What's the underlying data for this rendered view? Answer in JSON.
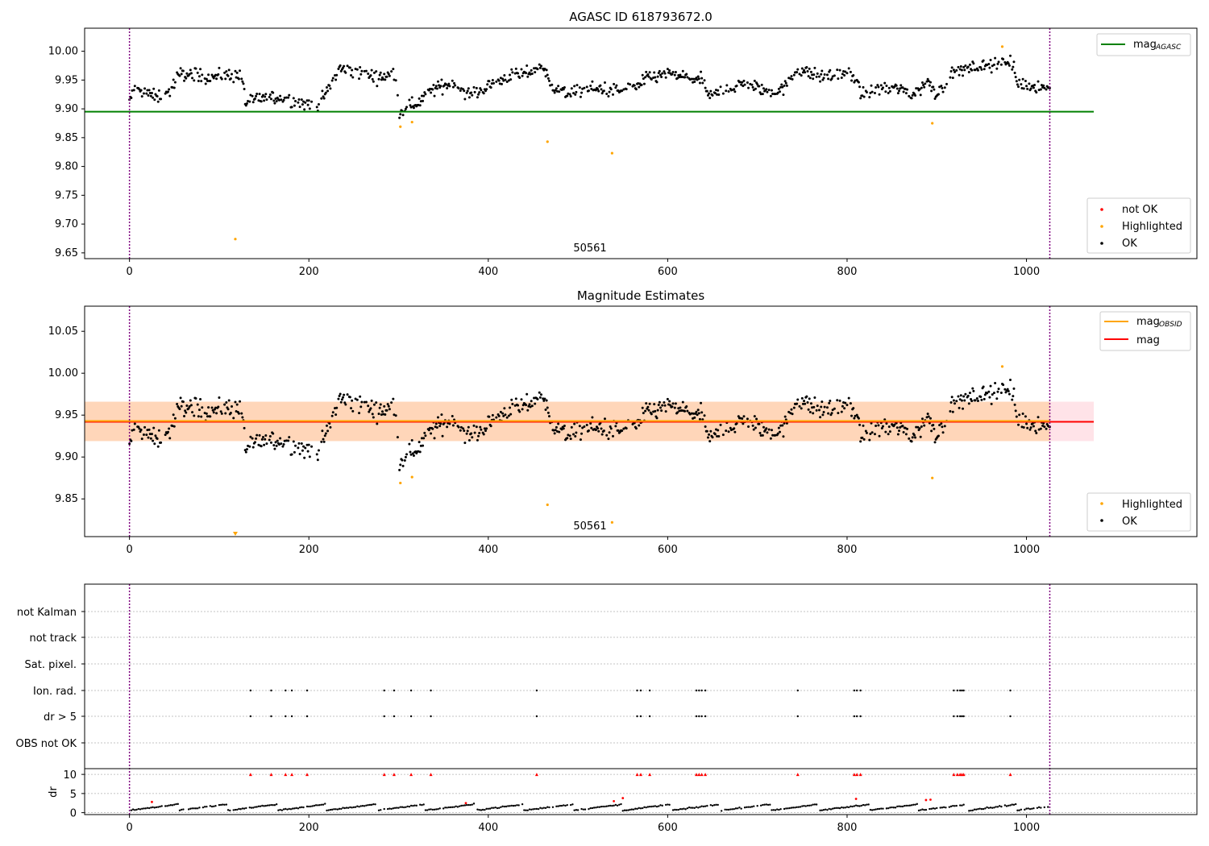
{
  "chart_data": [
    {
      "type": "scatter",
      "title": "AGASC ID 618793672.0",
      "xlim": [
        -50,
        1190
      ],
      "ylim": [
        9.64,
        10.04
      ],
      "xticks": [
        "0",
        "200",
        "400",
        "600",
        "800",
        "1000"
      ],
      "yticks": [
        "9.65",
        "9.70",
        "9.75",
        "9.80",
        "9.85",
        "9.90",
        "9.95",
        "10.00"
      ],
      "annotation": "50561",
      "vlines": [
        0,
        1026
      ],
      "hline": {
        "name": "mag_AGASC",
        "label_main": "mag",
        "label_sub": "AGASC",
        "value": 9.895,
        "color": "#008000",
        "x_end": 1075
      },
      "legend_top": [
        {
          "label_main": "mag",
          "label_sub": "AGASC",
          "color": "#008000",
          "kind": "line"
        }
      ],
      "legend_bottom": [
        {
          "label": "not OK",
          "color": "#ff0000",
          "kind": "dot"
        },
        {
          "label": "Highlighted",
          "color": "#ffa500",
          "kind": "dot"
        },
        {
          "label": "OK",
          "color": "#000000",
          "kind": "dot"
        }
      ],
      "series": [
        {
          "name": "Highlighted",
          "color": "#ffa500",
          "points": [
            [
              118,
              9.674
            ],
            [
              302,
              9.869
            ],
            [
              315,
              9.877
            ],
            [
              466,
              9.843
            ],
            [
              538,
              9.823
            ],
            [
              895,
              9.875
            ],
            [
              973,
              10.008
            ]
          ]
        }
      ],
      "ok_segments": [
        [
          0,
          9.91
        ],
        [
          5,
          9.935
        ],
        [
          15,
          9.93
        ],
        [
          30,
          9.92
        ],
        [
          45,
          9.93
        ],
        [
          55,
          9.96
        ],
        [
          70,
          9.96
        ],
        [
          90,
          9.955
        ],
        [
          110,
          9.96
        ],
        [
          125,
          9.955
        ],
        [
          130,
          9.91
        ],
        [
          150,
          9.92
        ],
        [
          170,
          9.92
        ],
        [
          190,
          9.91
        ],
        [
          210,
          9.905
        ],
        [
          220,
          9.93
        ],
        [
          235,
          9.97
        ],
        [
          260,
          9.96
        ],
        [
          280,
          9.955
        ],
        [
          297,
          9.96
        ],
        [
          300,
          9.895
        ],
        [
          320,
          9.91
        ],
        [
          340,
          9.935
        ],
        [
          360,
          9.945
        ],
        [
          380,
          9.925
        ],
        [
          395,
          9.935
        ],
        [
          420,
          9.955
        ],
        [
          440,
          9.96
        ],
        [
          460,
          9.975
        ],
        [
          470,
          9.94
        ],
        [
          490,
          9.925
        ],
        [
          510,
          9.935
        ],
        [
          530,
          9.935
        ],
        [
          545,
          9.93
        ],
        [
          560,
          9.935
        ],
        [
          580,
          9.955
        ],
        [
          600,
          9.96
        ],
        [
          620,
          9.955
        ],
        [
          640,
          9.95
        ],
        [
          645,
          9.92
        ],
        [
          665,
          9.935
        ],
        [
          690,
          9.945
        ],
        [
          710,
          9.93
        ],
        [
          730,
          9.935
        ],
        [
          745,
          9.97
        ],
        [
          770,
          9.955
        ],
        [
          800,
          9.96
        ],
        [
          810,
          9.955
        ],
        [
          815,
          9.925
        ],
        [
          840,
          9.935
        ],
        [
          860,
          9.935
        ],
        [
          875,
          9.925
        ],
        [
          890,
          9.95
        ],
        [
          900,
          9.925
        ],
        [
          920,
          9.965
        ],
        [
          950,
          9.975
        ],
        [
          975,
          9.98
        ],
        [
          985,
          9.975
        ],
        [
          990,
          9.945
        ],
        [
          1010,
          9.94
        ],
        [
          1026,
          9.935
        ]
      ]
    },
    {
      "type": "scatter",
      "title": "Magnitude Estimates",
      "xlim": [
        -50,
        1190
      ],
      "ylim": [
        9.805,
        10.08
      ],
      "xticks": [
        "0",
        "200",
        "400",
        "600",
        "800",
        "1000"
      ],
      "yticks": [
        "9.85",
        "9.90",
        "9.95",
        "10.00",
        "10.05"
      ],
      "annotation": "50561",
      "vlines": [
        0,
        1026
      ],
      "hlines": [
        {
          "name": "mag",
          "value": 9.942,
          "color": "#ff0000",
          "x_end": 1075,
          "band": [
            9.919,
            9.966
          ]
        },
        {
          "name": "mag_OBSID",
          "value": 9.943,
          "color": "#ffa500",
          "x_end": 1026,
          "band": [
            9.919,
            9.966
          ]
        }
      ],
      "legend_top": [
        {
          "label_main": "mag",
          "label_sub": "OBSID",
          "color": "#ffa500",
          "kind": "line"
        },
        {
          "label_main": "mag",
          "label_sub": "",
          "color": "#ff0000",
          "kind": "line"
        }
      ],
      "legend_bottom": [
        {
          "label": "Highlighted",
          "color": "#ffa500",
          "kind": "dot"
        },
        {
          "label": "OK",
          "color": "#000000",
          "kind": "dot"
        }
      ],
      "series": [
        {
          "name": "Highlighted",
          "color": "#ffa500",
          "points": [
            [
              302,
              9.869
            ],
            [
              315,
              9.876
            ],
            [
              466,
              9.843
            ],
            [
              538,
              9.822
            ],
            [
              895,
              9.875
            ],
            [
              973,
              10.008
            ]
          ]
        }
      ],
      "clipped_marker": {
        "x": 118,
        "color": "#ffa500"
      }
    },
    {
      "type": "scatter",
      "title": "",
      "xlim": [
        -50,
        1190
      ],
      "xticks": [
        "0",
        "200",
        "400",
        "600",
        "800",
        "1000"
      ],
      "categories": [
        "not Kalman",
        "not track",
        "Sat. pixel.",
        "Ion. rad.",
        "dr > 5",
        "OBS not OK"
      ],
      "vlines": [
        0,
        1026
      ],
      "flag_x": [
        135,
        158,
        174,
        181,
        198,
        284,
        295,
        314,
        336,
        454,
        566,
        570,
        580,
        632,
        635,
        638,
        642,
        745,
        808,
        811,
        815,
        919,
        923,
        926,
        928,
        930,
        982
      ],
      "dr": {
        "ylabel": "dr",
        "yticks": [
          "0",
          "5",
          "10"
        ],
        "ylim": [
          -0.5,
          11.5
        ],
        "flag_value": 10,
        "red_points": [
          [
            25,
            2.8
          ],
          [
            375,
            2.5
          ],
          [
            540,
            3.0
          ],
          [
            550,
            3.8
          ],
          [
            810,
            3.6
          ],
          [
            888,
            3.3
          ],
          [
            893,
            3.4
          ]
        ]
      }
    }
  ]
}
